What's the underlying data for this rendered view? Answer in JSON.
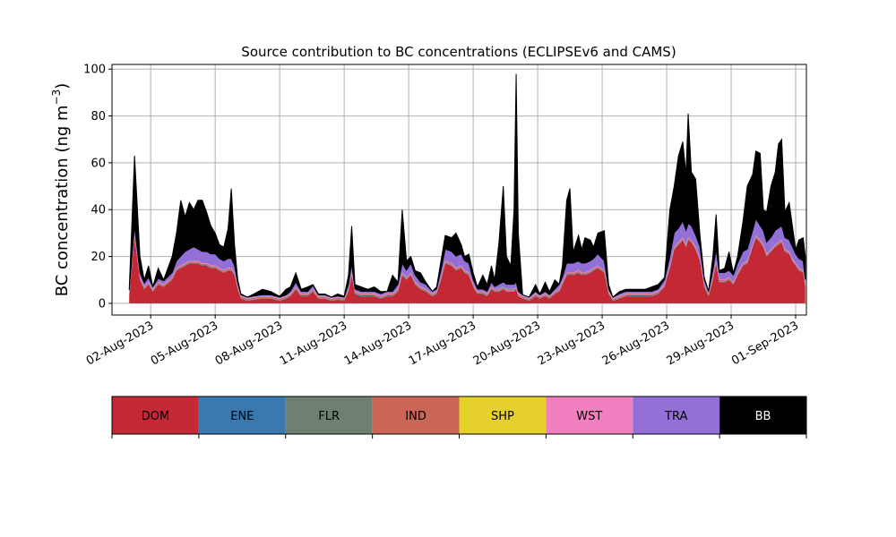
{
  "chart_data": {
    "type": "area",
    "stacked": true,
    "title": "Source contribution to BC concentrations (ECLIPSEv6 and CAMS)",
    "ylabel_prefix": "BC concentration (ng m",
    "ylabel_sup": "−3",
    "ylabel_suffix": ")",
    "xlabel": "",
    "ylim": [
      -5,
      102
    ],
    "xlim": [
      -0.8,
      31.5
    ],
    "yticks": [
      0,
      20,
      40,
      60,
      80,
      100
    ],
    "grid": true,
    "start_date": "2023-08-01",
    "end_date": "2023-09-01",
    "xticks": [
      {
        "day": 1,
        "label": "02-Aug-2023"
      },
      {
        "day": 4,
        "label": "05-Aug-2023"
      },
      {
        "day": 7,
        "label": "08-Aug-2023"
      },
      {
        "day": 10,
        "label": "11-Aug-2023"
      },
      {
        "day": 13,
        "label": "14-Aug-2023"
      },
      {
        "day": 16,
        "label": "17-Aug-2023"
      },
      {
        "day": 19,
        "label": "20-Aug-2023"
      },
      {
        "day": 22,
        "label": "23-Aug-2023"
      },
      {
        "day": 25,
        "label": "26-Aug-2023"
      },
      {
        "day": 28,
        "label": "29-Aug-2023"
      },
      {
        "day": 31,
        "label": "01-Sep-2023"
      }
    ],
    "series_order": [
      "DOM",
      "ENE",
      "FLR",
      "IND",
      "SHP",
      "WST",
      "TRA",
      "BB"
    ],
    "colors": {
      "DOM": "#c42834",
      "ENE": "#3a78b0",
      "FLR": "#708070",
      "IND": "#cb6656",
      "SHP": "#e5d02c",
      "WST": "#f280c0",
      "TRA": "#9370d8",
      "BB": "#000000"
    },
    "points": [
      {
        "x": 0.0,
        "dom": 3,
        "tra": 1.5,
        "total": 5
      },
      {
        "x": 0.25,
        "dom": 28,
        "tra": 4,
        "total": 63
      },
      {
        "x": 0.5,
        "dom": 10,
        "tra": 2,
        "total": 20
      },
      {
        "x": 0.7,
        "dom": 6,
        "tra": 1.5,
        "total": 10
      },
      {
        "x": 0.9,
        "dom": 8,
        "tra": 2,
        "total": 16
      },
      {
        "x": 1.1,
        "dom": 5,
        "tra": 1,
        "total": 7
      },
      {
        "x": 1.35,
        "dom": 8,
        "tra": 1.5,
        "total": 15
      },
      {
        "x": 1.6,
        "dom": 7,
        "tra": 1.5,
        "total": 10
      },
      {
        "x": 2.0,
        "dom": 10,
        "tra": 2,
        "total": 20
      },
      {
        "x": 2.2,
        "dom": 14,
        "tra": 3,
        "total": 30
      },
      {
        "x": 2.4,
        "dom": 15,
        "tra": 4,
        "total": 44
      },
      {
        "x": 2.6,
        "dom": 16,
        "tra": 5,
        "total": 37
      },
      {
        "x": 2.8,
        "dom": 17,
        "tra": 5,
        "total": 43
      },
      {
        "x": 3.0,
        "dom": 17,
        "tra": 6,
        "total": 40
      },
      {
        "x": 3.2,
        "dom": 17,
        "tra": 5,
        "total": 44
      },
      {
        "x": 3.4,
        "dom": 16,
        "tra": 5,
        "total": 44
      },
      {
        "x": 3.6,
        "dom": 16,
        "tra": 5,
        "total": 39
      },
      {
        "x": 3.8,
        "dom": 15,
        "tra": 5,
        "total": 33
      },
      {
        "x": 4.0,
        "dom": 15,
        "tra": 5,
        "total": 30
      },
      {
        "x": 4.2,
        "dom": 14,
        "tra": 4,
        "total": 25
      },
      {
        "x": 4.4,
        "dom": 13,
        "tra": 4,
        "total": 24
      },
      {
        "x": 4.6,
        "dom": 14,
        "tra": 4,
        "total": 32
      },
      {
        "x": 4.75,
        "dom": 14,
        "tra": 4,
        "total": 49
      },
      {
        "x": 4.9,
        "dom": 12,
        "tra": 3,
        "total": 25
      },
      {
        "x": 5.05,
        "dom": 6,
        "tra": 1.5,
        "total": 10
      },
      {
        "x": 5.2,
        "dom": 2,
        "tra": 0.5,
        "total": 4
      },
      {
        "x": 5.5,
        "dom": 1,
        "tra": 0.5,
        "total": 2
      },
      {
        "x": 5.8,
        "dom": 1.5,
        "tra": 0.5,
        "total": 4
      },
      {
        "x": 6.2,
        "dom": 2,
        "tra": 0.5,
        "total": 6
      },
      {
        "x": 6.6,
        "dom": 2,
        "tra": 0.5,
        "total": 5
      },
      {
        "x": 7.0,
        "dom": 1,
        "tra": 0.5,
        "total": 3
      },
      {
        "x": 7.3,
        "dom": 2,
        "tra": 0.5,
        "total": 6
      },
      {
        "x": 7.5,
        "dom": 3,
        "tra": 1,
        "total": 7
      },
      {
        "x": 7.75,
        "dom": 6,
        "tra": 2,
        "total": 13
      },
      {
        "x": 8.0,
        "dom": 3,
        "tra": 1,
        "total": 6
      },
      {
        "x": 8.3,
        "dom": 3,
        "tra": 1,
        "total": 7
      },
      {
        "x": 8.55,
        "dom": 5,
        "tra": 1.5,
        "total": 8
      },
      {
        "x": 8.8,
        "dom": 2,
        "tra": 0.5,
        "total": 4
      },
      {
        "x": 9.1,
        "dom": 2,
        "tra": 0.5,
        "total": 4
      },
      {
        "x": 9.4,
        "dom": 1,
        "tra": 0.5,
        "total": 2
      },
      {
        "x": 9.7,
        "dom": 1.5,
        "tra": 0.5,
        "total": 4
      },
      {
        "x": 10.0,
        "dom": 1,
        "tra": 0.5,
        "total": 3
      },
      {
        "x": 10.2,
        "dom": 5,
        "tra": 2,
        "total": 12
      },
      {
        "x": 10.35,
        "dom": 12,
        "tra": 4,
        "total": 33
      },
      {
        "x": 10.5,
        "dom": 4,
        "tra": 1,
        "total": 8
      },
      {
        "x": 10.8,
        "dom": 3,
        "tra": 1,
        "total": 7
      },
      {
        "x": 11.1,
        "dom": 3,
        "tra": 1,
        "total": 6
      },
      {
        "x": 11.4,
        "dom": 3,
        "tra": 1,
        "total": 7
      },
      {
        "x": 11.7,
        "dom": 2,
        "tra": 1,
        "total": 5
      },
      {
        "x": 12.0,
        "dom": 3,
        "tra": 1,
        "total": 5
      },
      {
        "x": 12.25,
        "dom": 3,
        "tra": 1,
        "total": 12
      },
      {
        "x": 12.5,
        "dom": 5,
        "tra": 2,
        "total": 9
      },
      {
        "x": 12.7,
        "dom": 12,
        "tra": 4,
        "total": 40
      },
      {
        "x": 12.9,
        "dom": 10,
        "tra": 3,
        "total": 18
      },
      {
        "x": 13.1,
        "dom": 12,
        "tra": 4,
        "total": 20
      },
      {
        "x": 13.3,
        "dom": 8,
        "tra": 3,
        "total": 14
      },
      {
        "x": 13.55,
        "dom": 6,
        "tra": 2,
        "total": 13
      },
      {
        "x": 13.8,
        "dom": 5,
        "tra": 2,
        "total": 9
      },
      {
        "x": 14.1,
        "dom": 3,
        "tra": 1,
        "total": 5
      },
      {
        "x": 14.3,
        "dom": 4,
        "tra": 1,
        "total": 7
      },
      {
        "x": 14.5,
        "dom": 10,
        "tra": 3,
        "total": 18
      },
      {
        "x": 14.7,
        "dom": 17,
        "tra": 5,
        "total": 29
      },
      {
        "x": 15.0,
        "dom": 16,
        "tra": 5,
        "total": 28
      },
      {
        "x": 15.2,
        "dom": 14,
        "tra": 5,
        "total": 30
      },
      {
        "x": 15.45,
        "dom": 15,
        "tra": 5,
        "total": 25
      },
      {
        "x": 15.6,
        "dom": 13,
        "tra": 4,
        "total": 20
      },
      {
        "x": 15.8,
        "dom": 12,
        "tra": 4,
        "total": 21
      },
      {
        "x": 16.0,
        "dom": 7,
        "tra": 2,
        "total": 13
      },
      {
        "x": 16.2,
        "dom": 4,
        "tra": 1,
        "total": 7
      },
      {
        "x": 16.45,
        "dom": 4,
        "tra": 1,
        "total": 12
      },
      {
        "x": 16.65,
        "dom": 3,
        "tra": 1,
        "total": 8
      },
      {
        "x": 16.85,
        "dom": 6,
        "tra": 2,
        "total": 16
      },
      {
        "x": 17.0,
        "dom": 5,
        "tra": 1,
        "total": 10
      },
      {
        "x": 17.2,
        "dom": 5,
        "tra": 2,
        "total": 26
      },
      {
        "x": 17.4,
        "dom": 6,
        "tra": 2,
        "total": 50
      },
      {
        "x": 17.55,
        "dom": 5,
        "tra": 2,
        "total": 20
      },
      {
        "x": 17.75,
        "dom": 5,
        "tra": 2,
        "total": 16
      },
      {
        "x": 17.9,
        "dom": 5,
        "tra": 2,
        "total": 40
      },
      {
        "x": 18.0,
        "dom": 6,
        "tra": 2,
        "total": 98
      },
      {
        "x": 18.1,
        "dom": 3,
        "tra": 1,
        "total": 30
      },
      {
        "x": 18.3,
        "dom": 2,
        "tra": 0.5,
        "total": 3
      },
      {
        "x": 18.6,
        "dom": 1,
        "tra": 0.5,
        "total": 2
      },
      {
        "x": 18.9,
        "dom": 3,
        "tra": 1,
        "total": 8
      },
      {
        "x": 19.1,
        "dom": 2,
        "tra": 0.5,
        "total": 4
      },
      {
        "x": 19.35,
        "dom": 3,
        "tra": 1,
        "total": 9
      },
      {
        "x": 19.55,
        "dom": 2,
        "tra": 0.5,
        "total": 5
      },
      {
        "x": 19.8,
        "dom": 4,
        "tra": 1,
        "total": 10
      },
      {
        "x": 20.0,
        "dom": 5,
        "tra": 2,
        "total": 8
      },
      {
        "x": 20.15,
        "dom": 8,
        "tra": 2,
        "total": 16
      },
      {
        "x": 20.35,
        "dom": 12,
        "tra": 4,
        "total": 44
      },
      {
        "x": 20.5,
        "dom": 12,
        "tra": 4,
        "total": 49
      },
      {
        "x": 20.65,
        "dom": 12,
        "tra": 4,
        "total": 22
      },
      {
        "x": 20.9,
        "dom": 13,
        "tra": 4,
        "total": 29
      },
      {
        "x": 21.05,
        "dom": 12,
        "tra": 4,
        "total": 23
      },
      {
        "x": 21.2,
        "dom": 12,
        "tra": 4,
        "total": 28
      },
      {
        "x": 21.45,
        "dom": 13,
        "tra": 4,
        "total": 27
      },
      {
        "x": 21.6,
        "dom": 14,
        "tra": 4,
        "total": 24
      },
      {
        "x": 21.8,
        "dom": 15,
        "tra": 5,
        "total": 30
      },
      {
        "x": 22.1,
        "dom": 13,
        "tra": 4,
        "total": 31
      },
      {
        "x": 22.3,
        "dom": 4,
        "tra": 1,
        "total": 8
      },
      {
        "x": 22.5,
        "dom": 1,
        "tra": 0.5,
        "total": 2
      },
      {
        "x": 22.8,
        "dom": 2,
        "tra": 1,
        "total": 5
      },
      {
        "x": 23.1,
        "dom": 3,
        "tra": 1,
        "total": 6
      },
      {
        "x": 23.5,
        "dom": 3,
        "tra": 1,
        "total": 6
      },
      {
        "x": 24.0,
        "dom": 3,
        "tra": 1,
        "total": 6
      },
      {
        "x": 24.3,
        "dom": 3,
        "tra": 1,
        "total": 7
      },
      {
        "x": 24.6,
        "dom": 4,
        "tra": 1,
        "total": 8
      },
      {
        "x": 24.9,
        "dom": 7,
        "tra": 2,
        "total": 11
      },
      {
        "x": 25.15,
        "dom": 15,
        "tra": 4,
        "total": 40
      },
      {
        "x": 25.35,
        "dom": 23,
        "tra": 6,
        "total": 50
      },
      {
        "x": 25.55,
        "dom": 25,
        "tra": 6,
        "total": 63
      },
      {
        "x": 25.75,
        "dom": 27,
        "tra": 7,
        "total": 69
      },
      {
        "x": 25.9,
        "dom": 24,
        "tra": 6,
        "total": 55
      },
      {
        "x": 26.0,
        "dom": 27,
        "tra": 6,
        "total": 81
      },
      {
        "x": 26.15,
        "dom": 26,
        "tra": 6,
        "total": 56
      },
      {
        "x": 26.35,
        "dom": 23,
        "tra": 5,
        "total": 53
      },
      {
        "x": 26.55,
        "dom": 18,
        "tra": 5,
        "total": 29
      },
      {
        "x": 26.75,
        "dom": 7,
        "tra": 2,
        "total": 11
      },
      {
        "x": 26.95,
        "dom": 3,
        "tra": 1,
        "total": 5
      },
      {
        "x": 27.15,
        "dom": 10,
        "tra": 3,
        "total": 20
      },
      {
        "x": 27.3,
        "dom": 17,
        "tra": 5,
        "total": 38
      },
      {
        "x": 27.45,
        "dom": 9,
        "tra": 3,
        "total": 14
      },
      {
        "x": 27.7,
        "dom": 9,
        "tra": 3,
        "total": 15
      },
      {
        "x": 27.9,
        "dom": 10,
        "tra": 3,
        "total": 22
      },
      {
        "x": 28.1,
        "dom": 8,
        "tra": 3,
        "total": 13
      },
      {
        "x": 28.3,
        "dom": 12,
        "tra": 4,
        "total": 20
      },
      {
        "x": 28.55,
        "dom": 16,
        "tra": 5,
        "total": 35
      },
      {
        "x": 28.75,
        "dom": 17,
        "tra": 5,
        "total": 50
      },
      {
        "x": 29.0,
        "dom": 24,
        "tra": 6,
        "total": 55
      },
      {
        "x": 29.15,
        "dom": 28,
        "tra": 7,
        "total": 65
      },
      {
        "x": 29.35,
        "dom": 26,
        "tra": 6,
        "total": 64
      },
      {
        "x": 29.5,
        "dom": 24,
        "tra": 6,
        "total": 40
      },
      {
        "x": 29.65,
        "dom": 20,
        "tra": 5,
        "total": 39
      },
      {
        "x": 29.85,
        "dom": 22,
        "tra": 5,
        "total": 50
      },
      {
        "x": 30.05,
        "dom": 24,
        "tra": 6,
        "total": 56
      },
      {
        "x": 30.2,
        "dom": 25,
        "tra": 6,
        "total": 68
      },
      {
        "x": 30.35,
        "dom": 26,
        "tra": 6,
        "total": 70
      },
      {
        "x": 30.5,
        "dom": 22,
        "tra": 5,
        "total": 39
      },
      {
        "x": 30.7,
        "dom": 21,
        "tra": 5,
        "total": 43
      },
      {
        "x": 30.85,
        "dom": 18,
        "tra": 5,
        "total": 33
      },
      {
        "x": 31.0,
        "dom": 16,
        "tra": 4,
        "total": 23
      },
      {
        "x": 31.15,
        "dom": 14,
        "tra": 4,
        "total": 27
      },
      {
        "x": 31.35,
        "dom": 13,
        "tra": 4,
        "total": 28
      },
      {
        "x": 31.45,
        "dom": 7,
        "tra": 2,
        "total": 20
      }
    ]
  },
  "legend": {
    "items": [
      {
        "label": "DOM",
        "color": "#c42834",
        "text_color": "#000000"
      },
      {
        "label": "ENE",
        "color": "#3a78b0",
        "text_color": "#000000"
      },
      {
        "label": "FLR",
        "color": "#708070",
        "text_color": "#000000"
      },
      {
        "label": "IND",
        "color": "#cb6656",
        "text_color": "#000000"
      },
      {
        "label": "SHP",
        "color": "#e5d02c",
        "text_color": "#000000"
      },
      {
        "label": "WST",
        "color": "#f280c0",
        "text_color": "#000000"
      },
      {
        "label": "TRA",
        "color": "#9370d8",
        "text_color": "#000000"
      },
      {
        "label": "BB",
        "color": "#000000",
        "text_color": "#ffffff"
      }
    ]
  }
}
